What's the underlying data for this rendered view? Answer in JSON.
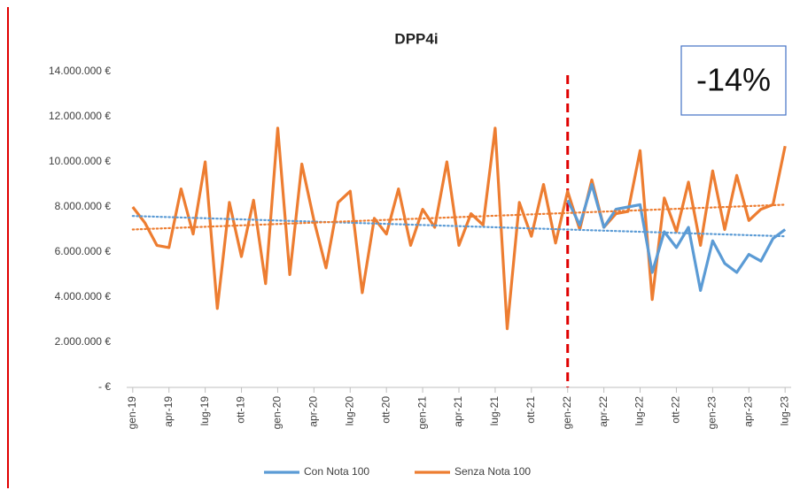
{
  "chart_data": {
    "type": "line",
    "title": "DPP4i",
    "annotation": "-14%",
    "categories": [
      "gen-19",
      null,
      null,
      "apr-19",
      null,
      null,
      "lug-19",
      null,
      null,
      "ott-19",
      null,
      null,
      "gen-20",
      null,
      null,
      "apr-20",
      null,
      null,
      "lug-20",
      null,
      null,
      "ott-20",
      null,
      null,
      "gen-21",
      null,
      null,
      "apr-21",
      null,
      null,
      "lug-21",
      null,
      null,
      "ott-21",
      null,
      null,
      "gen-22",
      null,
      null,
      "apr-22",
      null,
      null,
      "lug-22",
      null,
      null,
      "ott-22",
      null,
      null,
      "gen-23",
      null,
      null,
      "apr-23",
      null,
      null,
      "lug-23"
    ],
    "series": [
      {
        "name": "Con Nota 100",
        "color": "#5b9bd5",
        "values": [
          null,
          null,
          null,
          null,
          null,
          null,
          null,
          null,
          null,
          null,
          null,
          null,
          null,
          null,
          null,
          null,
          null,
          null,
          null,
          null,
          null,
          null,
          null,
          null,
          null,
          null,
          null,
          null,
          null,
          null,
          null,
          null,
          null,
          null,
          null,
          null,
          8300000,
          7200000,
          9000000,
          7100000,
          7900000,
          8000000,
          8100000,
          5100000,
          6900000,
          6200000,
          7100000,
          4300000,
          6500000,
          5500000,
          5100000,
          5900000,
          5600000,
          6600000,
          7000000
        ]
      },
      {
        "name": "Senza Nota 100",
        "color": "#ed7d31",
        "values": [
          8000000,
          7300000,
          6300000,
          6200000,
          8800000,
          6800000,
          10000000,
          3500000,
          8200000,
          5800000,
          8300000,
          4600000,
          11500000,
          5000000,
          9900000,
          7400000,
          5300000,
          8200000,
          8700000,
          4200000,
          7500000,
          6800000,
          8800000,
          6300000,
          7900000,
          7100000,
          10000000,
          6300000,
          7700000,
          7200000,
          11500000,
          2600000,
          8200000,
          6700000,
          9000000,
          6400000,
          8700000,
          7000000,
          9200000,
          7100000,
          7700000,
          7800000,
          10500000,
          3900000,
          8400000,
          6900000,
          9100000,
          6300000,
          9600000,
          7000000,
          9400000,
          7400000,
          7900000,
          8100000,
          10700000
        ]
      }
    ],
    "trendlines": [
      {
        "series": 0,
        "start": 7600000,
        "end": 6700000
      },
      {
        "series": 1,
        "start": 7000000,
        "end": 8100000
      }
    ],
    "reference_line": {
      "at": "gen-22",
      "color": "#e00000"
    },
    "ylim": [
      0,
      14000000
    ],
    "yticks": [
      {
        "value": 0,
        "label": "-   €"
      },
      {
        "value": 2000000,
        "label": "2.000.000 €"
      },
      {
        "value": 4000000,
        "label": "4.000.000 €"
      },
      {
        "value": 6000000,
        "label": "6.000.000 €"
      },
      {
        "value": 8000000,
        "label": "8.000.000 €"
      },
      {
        "value": 10000000,
        "label": "10.000.000 €"
      },
      {
        "value": 12000000,
        "label": "12.000.000 €"
      },
      {
        "value": 14000000,
        "label": "14.000.000 €"
      }
    ],
    "grid": false,
    "legend": "bottom"
  }
}
